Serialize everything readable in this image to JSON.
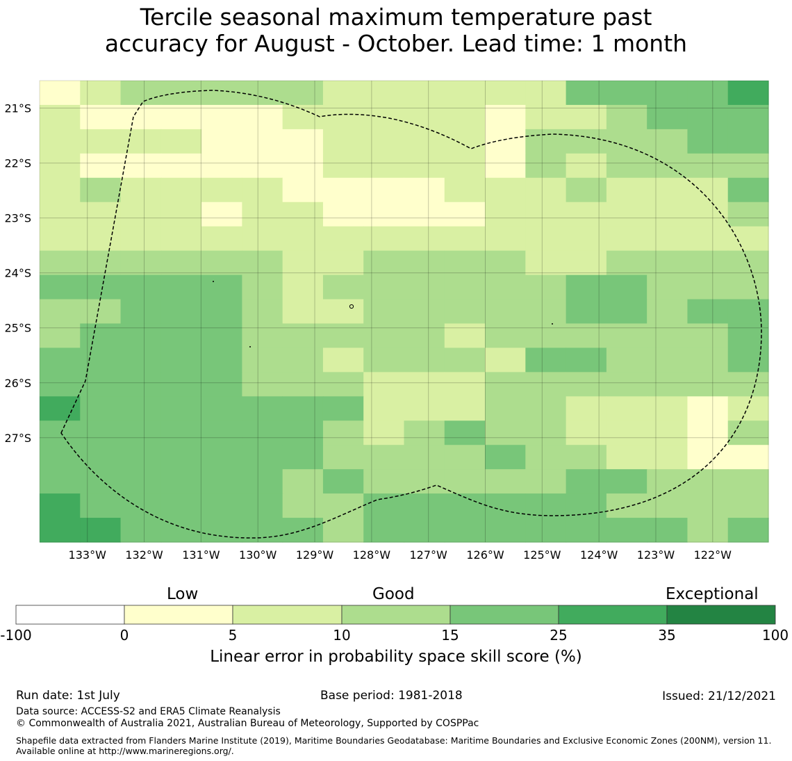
{
  "title": {
    "line1": "Tercile seasonal maximum temperature past",
    "line2": "accuracy for August - October. Lead time: 1 month"
  },
  "map": {
    "lat_range": [
      -28.9,
      -20.5
    ],
    "lon_range": [
      -133.84,
      -121.02
    ],
    "lat_labels": [
      "21°S",
      "22°S",
      "23°S",
      "24°S",
      "25°S",
      "26°S",
      "27°S"
    ],
    "lat_values": [
      -21,
      -22,
      -23,
      -24,
      -25,
      -26,
      -27
    ],
    "lon_labels": [
      "133°W",
      "132°W",
      "131°W",
      "130°W",
      "129°W",
      "128°W",
      "127°W",
      "126°W",
      "125°W",
      "124°W",
      "123°W",
      "122°W"
    ],
    "lon_values": [
      -133,
      -132,
      -131,
      -130,
      -129,
      -128,
      -127,
      -126,
      -125,
      -124,
      -123,
      -122
    ],
    "grid_category_legend": "0=0–5, 1=5–10, 2=10–15, 3=15–25, 4=25–35",
    "grid": [
      "012222211111133334",
      "100000111110112333",
      "111100011110222233",
      "100000011110212222",
      "121111000011121113",
      "111101100001111112",
      "111111111111111111",
      "222222112222112222",
      "333332122222233222",
      "223332112222233233",
      "233332222212222223",
      "333332212221332223",
      "333332221112222222",
      "433333331112211101",
      "333333321232211102",
      "333333322223221100",
      "333333232222233222",
      "433333223333332222",
      "443333323333333323"
    ]
  },
  "colorbar": {
    "categories": [
      "Low",
      "Good",
      "Exceptional"
    ],
    "ticks": [
      "-100",
      "0",
      "5",
      "10",
      "15",
      "25",
      "35",
      "100"
    ],
    "colors": [
      "#ffffff",
      "#ffffcc",
      "#d9f0a3",
      "#addd8e",
      "#78c679",
      "#41ab5d",
      "#238443"
    ],
    "label": "Linear error in probability space skill score (%)"
  },
  "footer": {
    "run_date": "Run date: 1st July",
    "base_period": "Base period: 1981-2018",
    "issued": "Issued: 21/12/2021",
    "data_source": "Data source: ACCESS-S2 and ERA5 Climate Reanalysis",
    "copyright": "© Commonwealth of Australia 2021, Australian Bureau of Meteorology, Supported by COSPPac",
    "shapefile": "Shapefile data extracted from Flanders Marine Institute (2019), Maritime Boundaries Geodatabase: Maritime Boundaries and Exclusive Economic Zones (200NM), version 11. Available online at http://www.marineregions.org/."
  }
}
